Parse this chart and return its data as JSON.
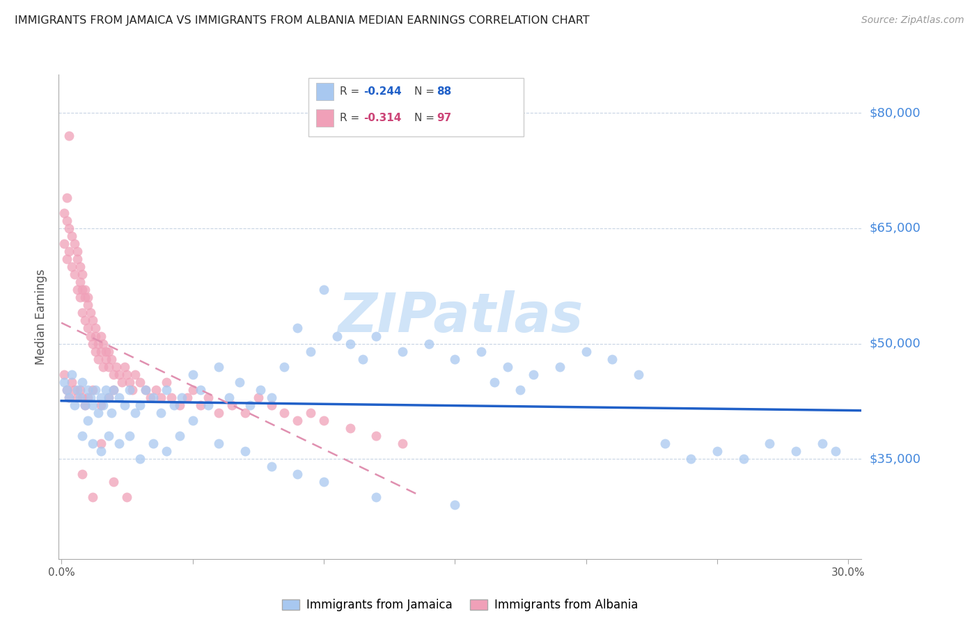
{
  "title": "IMMIGRANTS FROM JAMAICA VS IMMIGRANTS FROM ALBANIA MEDIAN EARNINGS CORRELATION CHART",
  "source": "Source: ZipAtlas.com",
  "ylabel": "Median Earnings",
  "ytick_labels": [
    "$35,000",
    "$50,000",
    "$65,000",
    "$80,000"
  ],
  "ytick_values": [
    35000,
    50000,
    65000,
    80000
  ],
  "ymin": 22000,
  "ymax": 85000,
  "xmin": -0.001,
  "xmax": 0.305,
  "color_jamaica": "#a8c8f0",
  "color_albania": "#f0a0b8",
  "color_jamaica_line": "#2060c8",
  "color_albania_line": "#e090b0",
  "color_ytick": "#4488dd",
  "watermark_color": "#d0e4f8",
  "background_color": "#ffffff",
  "grid_color": "#c8d4e4",
  "jamaica_x": [
    0.001,
    0.002,
    0.003,
    0.004,
    0.005,
    0.006,
    0.007,
    0.008,
    0.009,
    0.01,
    0.011,
    0.012,
    0.013,
    0.014,
    0.015,
    0.016,
    0.017,
    0.018,
    0.019,
    0.02,
    0.022,
    0.024,
    0.026,
    0.028,
    0.03,
    0.032,
    0.035,
    0.038,
    0.04,
    0.043,
    0.046,
    0.05,
    0.053,
    0.056,
    0.06,
    0.064,
    0.068,
    0.072,
    0.076,
    0.08,
    0.085,
    0.09,
    0.095,
    0.1,
    0.105,
    0.11,
    0.115,
    0.12,
    0.13,
    0.14,
    0.15,
    0.16,
    0.165,
    0.17,
    0.175,
    0.18,
    0.19,
    0.2,
    0.21,
    0.22,
    0.23,
    0.24,
    0.25,
    0.26,
    0.27,
    0.28,
    0.29,
    0.295,
    0.008,
    0.01,
    0.012,
    0.015,
    0.018,
    0.022,
    0.026,
    0.03,
    0.035,
    0.04,
    0.045,
    0.05,
    0.06,
    0.07,
    0.08,
    0.09,
    0.1,
    0.12,
    0.15
  ],
  "jamaica_y": [
    45000,
    44000,
    43000,
    46000,
    42000,
    44000,
    43000,
    45000,
    42000,
    44000,
    43000,
    42000,
    44000,
    41000,
    43000,
    42000,
    44000,
    43000,
    41000,
    44000,
    43000,
    42000,
    44000,
    41000,
    42000,
    44000,
    43000,
    41000,
    44000,
    42000,
    43000,
    46000,
    44000,
    42000,
    47000,
    43000,
    45000,
    42000,
    44000,
    43000,
    47000,
    52000,
    49000,
    57000,
    51000,
    50000,
    48000,
    51000,
    49000,
    50000,
    48000,
    49000,
    45000,
    47000,
    44000,
    46000,
    47000,
    49000,
    48000,
    46000,
    37000,
    35000,
    36000,
    35000,
    37000,
    36000,
    37000,
    36000,
    38000,
    40000,
    37000,
    36000,
    38000,
    37000,
    38000,
    35000,
    37000,
    36000,
    38000,
    40000,
    37000,
    36000,
    34000,
    33000,
    32000,
    30000,
    29000
  ],
  "albania_x": [
    0.001,
    0.001,
    0.002,
    0.002,
    0.002,
    0.003,
    0.003,
    0.004,
    0.004,
    0.005,
    0.005,
    0.006,
    0.006,
    0.006,
    0.007,
    0.007,
    0.007,
    0.008,
    0.008,
    0.008,
    0.009,
    0.009,
    0.009,
    0.01,
    0.01,
    0.01,
    0.011,
    0.011,
    0.012,
    0.012,
    0.013,
    0.013,
    0.013,
    0.014,
    0.014,
    0.015,
    0.015,
    0.016,
    0.016,
    0.017,
    0.017,
    0.018,
    0.018,
    0.019,
    0.02,
    0.021,
    0.022,
    0.023,
    0.024,
    0.025,
    0.026,
    0.027,
    0.028,
    0.03,
    0.032,
    0.034,
    0.036,
    0.038,
    0.04,
    0.042,
    0.045,
    0.048,
    0.05,
    0.053,
    0.056,
    0.06,
    0.065,
    0.07,
    0.075,
    0.08,
    0.085,
    0.09,
    0.095,
    0.1,
    0.11,
    0.12,
    0.13,
    0.001,
    0.002,
    0.003,
    0.004,
    0.005,
    0.006,
    0.007,
    0.008,
    0.009,
    0.01,
    0.012,
    0.015,
    0.018,
    0.02,
    0.003,
    0.015,
    0.008,
    0.012,
    0.02,
    0.025
  ],
  "albania_y": [
    67000,
    63000,
    66000,
    61000,
    69000,
    65000,
    62000,
    64000,
    60000,
    63000,
    59000,
    62000,
    57000,
    61000,
    60000,
    56000,
    58000,
    57000,
    54000,
    59000,
    56000,
    53000,
    57000,
    55000,
    52000,
    56000,
    54000,
    51000,
    53000,
    50000,
    52000,
    49000,
    51000,
    50000,
    48000,
    51000,
    49000,
    50000,
    47000,
    49000,
    48000,
    47000,
    49000,
    48000,
    46000,
    47000,
    46000,
    45000,
    47000,
    46000,
    45000,
    44000,
    46000,
    45000,
    44000,
    43000,
    44000,
    43000,
    45000,
    43000,
    42000,
    43000,
    44000,
    42000,
    43000,
    41000,
    42000,
    41000,
    43000,
    42000,
    41000,
    40000,
    41000,
    40000,
    39000,
    38000,
    37000,
    46000,
    44000,
    43000,
    45000,
    44000,
    43000,
    44000,
    43000,
    42000,
    43000,
    44000,
    42000,
    43000,
    44000,
    77000,
    37000,
    33000,
    30000,
    32000,
    30000
  ]
}
